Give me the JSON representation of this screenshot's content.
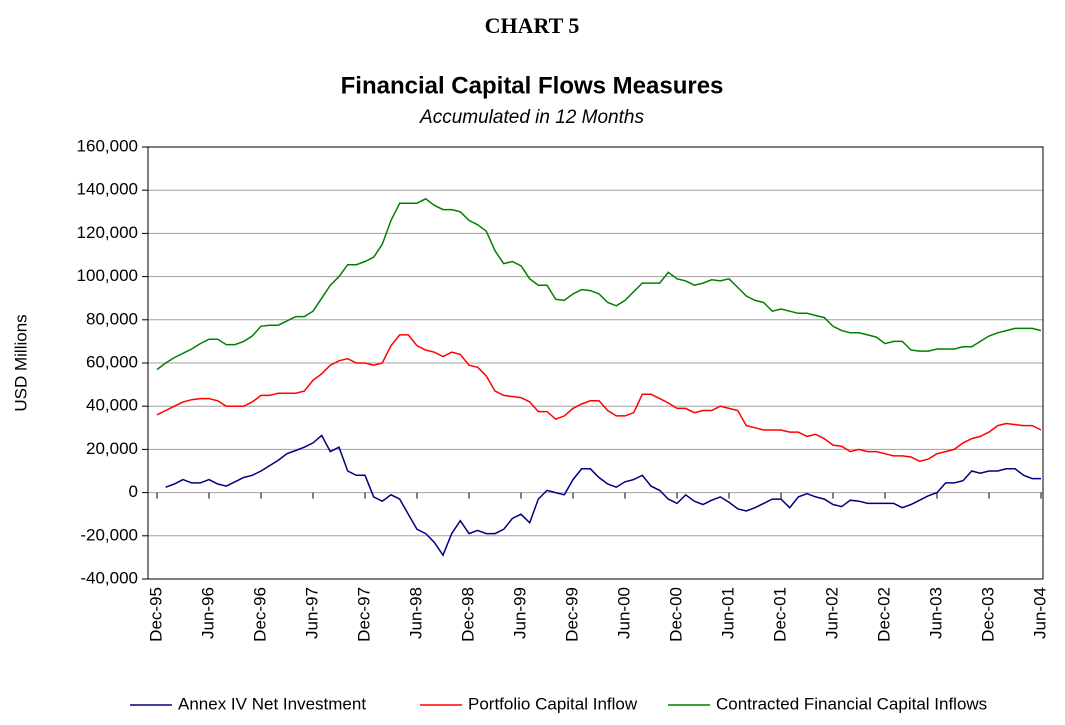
{
  "chart_data": {
    "type": "line",
    "chart_label": "CHART 5",
    "title": "Financial Capital Flows Measures",
    "subtitle": "Accumulated in 12 Months",
    "y_label": "USD Millions",
    "categories": [
      "Dec-95",
      null,
      null,
      null,
      null,
      null,
      "Jun-96",
      null,
      null,
      null,
      null,
      null,
      "Dec-96",
      null,
      null,
      null,
      null,
      null,
      "Jun-97",
      null,
      null,
      null,
      null,
      null,
      "Dec-97",
      null,
      null,
      null,
      null,
      null,
      "Jun-98",
      null,
      null,
      null,
      null,
      null,
      "Dec-98",
      null,
      null,
      null,
      null,
      null,
      "Jun-99",
      null,
      null,
      null,
      null,
      null,
      "Dec-99",
      null,
      null,
      null,
      null,
      null,
      "Jun-00",
      null,
      null,
      null,
      null,
      null,
      "Dec-00",
      null,
      null,
      null,
      null,
      null,
      "Jun-01",
      null,
      null,
      null,
      null,
      null,
      "Dec-01",
      null,
      null,
      null,
      null,
      null,
      "Jun-02",
      null,
      null,
      null,
      null,
      null,
      "Dec-02",
      null,
      null,
      null,
      null,
      null,
      "Jun-03",
      null,
      null,
      null,
      null,
      null,
      "Dec-03",
      null,
      null,
      null,
      null,
      null,
      "Jun-04"
    ],
    "series": [
      {
        "name": "Annex IV Net Investment",
        "color": "#000080",
        "values": [
          null,
          2500,
          4000,
          6000,
          4500,
          4500,
          6000,
          4000,
          3000,
          5000,
          7000,
          8000,
          10000,
          12500,
          15000,
          18000,
          19500,
          21000,
          23000,
          26500,
          19000,
          21000,
          10000,
          8000,
          8000,
          -2000,
          -4000,
          -1000,
          -3000,
          -10000,
          -17000,
          -19000,
          -23000,
          -29000,
          -19000,
          -13000,
          -19000,
          -17500,
          -19000,
          -19000,
          -17000,
          -12000,
          -10000,
          -14000,
          -3000,
          1000,
          0,
          -1000,
          6000,
          11000,
          11000,
          7000,
          4000,
          2500,
          5000,
          6000,
          8000,
          3000,
          1000,
          -3000,
          -5000,
          -1000,
          -4000,
          -5500,
          -3500,
          -2000,
          -4500,
          -7500,
          -8500,
          -7000,
          -5000,
          -3000,
          -3000,
          -7000,
          -2000,
          -500,
          -2000,
          -3000,
          -5500,
          -6500,
          -3500,
          -4000,
          -5000,
          -5000,
          -5000,
          -5000,
          -7000,
          -5500,
          -3500,
          -1500,
          0,
          4500,
          4500,
          5500,
          10000,
          9000,
          10000,
          10000,
          11000,
          11000,
          8000,
          6500,
          6500
        ]
      },
      {
        "name": "Portfolio Capital Inflow",
        "color": "#ff0000",
        "values": [
          36000,
          38000,
          40000,
          42000,
          43000,
          43500,
          43500,
          42500,
          40000,
          40000,
          40000,
          42000,
          45000,
          45000,
          46000,
          46000,
          46000,
          47000,
          52000,
          55000,
          59000,
          61000,
          62000,
          60000,
          60000,
          59000,
          60000,
          68000,
          73000,
          73000,
          68000,
          66000,
          65000,
          63000,
          65000,
          64000,
          59000,
          58000,
          54000,
          47000,
          45000,
          44500,
          44000,
          42000,
          37500,
          37500,
          34000,
          35500,
          39000,
          41000,
          42500,
          42500,
          38000,
          35500,
          35500,
          37000,
          45500,
          45500,
          43500,
          41500,
          39000,
          39000,
          37000,
          38000,
          38000,
          40000,
          39000,
          38000,
          31000,
          30000,
          29000,
          29000,
          29000,
          28000,
          28000,
          26000,
          27000,
          25000,
          22000,
          21500,
          19000,
          20000,
          19000,
          19000,
          18000,
          17000,
          17000,
          16500,
          14500,
          15500,
          18000,
          19000,
          20000,
          23000,
          25000,
          26000,
          28000,
          31000,
          32000,
          31500,
          31000,
          31000,
          29000
        ]
      },
      {
        "name": "Contracted Financial Capital Inflows",
        "color": "#008000",
        "values": [
          57000,
          60000,
          62500,
          64500,
          66500,
          69000,
          71000,
          71000,
          68500,
          68500,
          70000,
          72500,
          77000,
          77500,
          77500,
          79500,
          81500,
          81500,
          84000,
          90000,
          96000,
          100000,
          105500,
          105500,
          107000,
          109000,
          115000,
          126000,
          134000,
          134000,
          134000,
          136000,
          133000,
          131000,
          131000,
          130000,
          126000,
          124000,
          121000,
          112000,
          106000,
          107000,
          105000,
          99000,
          96000,
          96000,
          89500,
          89000,
          92000,
          94000,
          93500,
          92000,
          88000,
          86500,
          89000,
          93000,
          97000,
          97000,
          97000,
          102000,
          99000,
          98000,
          96000,
          97000,
          98500,
          98000,
          99000,
          95000,
          91000,
          89000,
          88000,
          84000,
          85000,
          84000,
          83000,
          83000,
          82000,
          81000,
          77000,
          75000,
          74000,
          74000,
          73000,
          72000,
          69000,
          70000,
          70000,
          66000,
          65500,
          65500,
          66500,
          66500,
          66500,
          67500,
          67500,
          70000,
          72500,
          74000,
          75000,
          76000,
          76000,
          76000,
          75000
        ]
      }
    ],
    "ylim": [
      -40000,
      160000
    ],
    "yticks": [
      {
        "value": -40000,
        "label": "-40,000"
      },
      {
        "value": -20000,
        "label": "-20,000"
      },
      0,
      {
        "value": 20000,
        "label": "20,000"
      },
      {
        "value": 40000,
        "label": "40,000"
      },
      {
        "value": 60000,
        "label": "60,000"
      },
      {
        "value": 80000,
        "label": "80,000"
      },
      {
        "value": 100000,
        "label": "100,000"
      },
      {
        "value": 120000,
        "label": "120,000"
      },
      {
        "value": 140000,
        "label": "140,000"
      },
      {
        "value": 160000,
        "label": "160,000"
      }
    ],
    "grid": true,
    "legend": "bottom"
  }
}
